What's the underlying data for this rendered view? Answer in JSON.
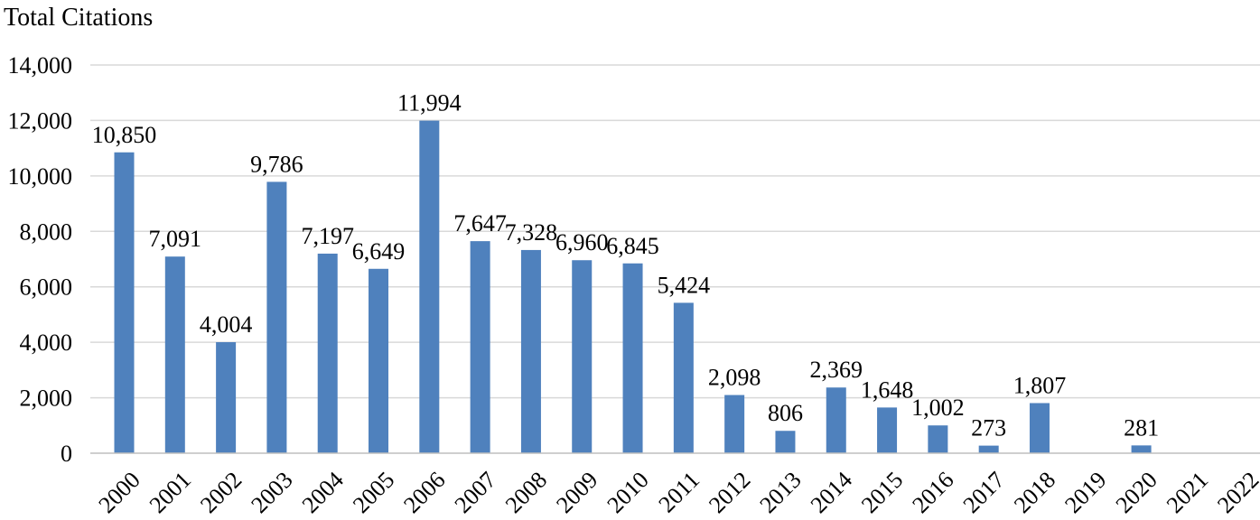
{
  "chart_data": {
    "type": "bar",
    "title": "Total Citations",
    "xlabel": "",
    "ylabel": "",
    "categories": [
      "2000",
      "2001",
      "2002",
      "2003",
      "2004",
      "2005",
      "2006",
      "2007",
      "2008",
      "2009",
      "2010",
      "2011",
      "2012",
      "2013",
      "2014",
      "2015",
      "2016",
      "2017",
      "2018",
      "2019",
      "2020",
      "2021",
      "2022"
    ],
    "values": [
      10850,
      7091,
      4004,
      9786,
      7197,
      6649,
      11994,
      7647,
      7328,
      6960,
      6845,
      5424,
      2098,
      806,
      2369,
      1648,
      1002,
      273,
      1807,
      null,
      281,
      null,
      null
    ],
    "data_labels": [
      "10,850",
      "7,091",
      "4,004",
      "9,786",
      "7,197",
      "6,649",
      "11,994",
      "7,647",
      "7,328",
      "6,960",
      "6,845",
      "5,424",
      "2,098",
      "806",
      "2,369",
      "1,648",
      "1,002",
      "273",
      "1,807",
      "",
      "281",
      "",
      ""
    ],
    "ylim": [
      0,
      14000
    ],
    "yticks": [
      "0",
      "2,000",
      "4,000",
      "6,000",
      "8,000",
      "10,000",
      "12,000",
      "14,000"
    ],
    "grid": true,
    "bar_color": "#4F81BD",
    "grid_color": "#D9D9D9",
    "axis_color": "#BFBFBF"
  }
}
